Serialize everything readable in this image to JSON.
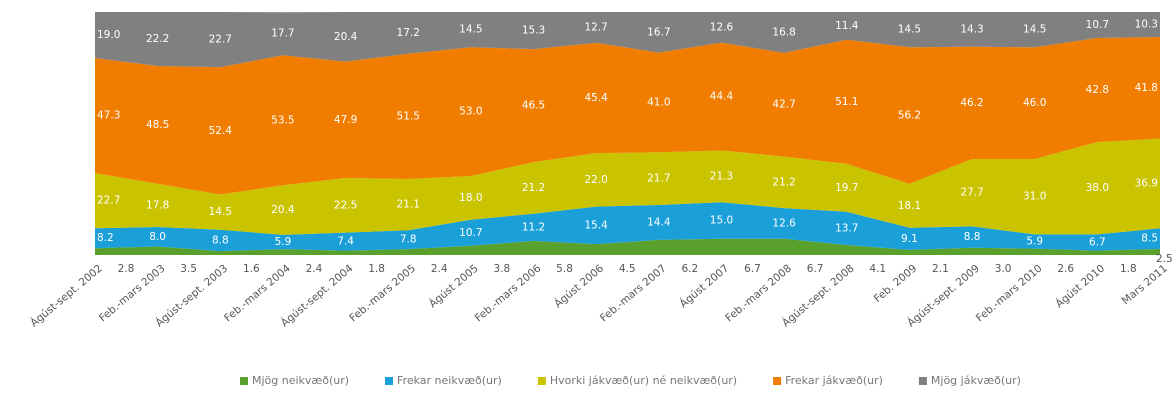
{
  "chart_data": {
    "type": "stacked_area",
    "categories": [
      "Ágúst-sept. 2002",
      "Feb.-mars 2003",
      "Ágúst-sept. 2003",
      "Feb.-mars 2004",
      "Ágúst-sept. 2004",
      "Feb.-mars 2005",
      "Ágúst 2005",
      "Feb.-mars 2006",
      "Ágúst 2006",
      "Feb.-mars 2007",
      "Ágúst 2007",
      "Feb.-mars 2008",
      "Ágúst-sept. 2008",
      "Feb. 2009",
      "Ágúst-sept. 2009",
      "Feb.-mars 2010",
      "Ágúst 2010",
      "Mars 2011"
    ],
    "ylim": [
      0,
      100
    ],
    "legend": "bottom",
    "series": [
      {
        "name": "Mjög neikvæð(ur)",
        "color": "#5aa02c",
        "values": [
          2.8,
          3.5,
          1.6,
          2.4,
          1.8,
          2.4,
          3.8,
          5.8,
          4.5,
          6.2,
          6.7,
          6.7,
          4.1,
          2.1,
          3.0,
          2.6,
          1.8,
          2.5
        ],
        "value_labels": [
          "2.8",
          "3.5",
          "1.6",
          "2.4",
          "1.8",
          "2.4",
          "3.8",
          "5.8",
          "4.5",
          "6.2",
          "6.7",
          "6.7",
          "4.1",
          "2.1",
          "3.0",
          "2.6",
          "1.8",
          "2.5"
        ]
      },
      {
        "name": "Frekar neikvæð(ur)",
        "color": "#1a9fd8",
        "values": [
          8.2,
          8.0,
          8.8,
          5.9,
          7.4,
          7.8,
          10.7,
          11.2,
          15.4,
          14.4,
          15.0,
          12.6,
          13.7,
          9.1,
          8.8,
          5.9,
          6.7,
          8.5
        ],
        "value_labels": [
          "8.2",
          "8.0",
          "8.8",
          "5.9",
          "7.4",
          "7.8",
          "10.7",
          "11.2",
          "15.4",
          "14.4",
          "15.0",
          "12.6",
          "13.7",
          "9.1",
          "8.8",
          "5.9",
          "6.7",
          "8.5"
        ]
      },
      {
        "name": "Hvorki jákvæð(ur) né neikvæð(ur)",
        "color": "#c9c300",
        "values": [
          22.7,
          17.8,
          14.5,
          20.4,
          22.5,
          21.1,
          18.0,
          21.2,
          22.0,
          21.7,
          21.3,
          21.2,
          19.7,
          18.1,
          27.7,
          31.0,
          38.0,
          36.9
        ],
        "value_labels": [
          "22.7",
          "17.8",
          "14.5",
          "20.4",
          "22.5",
          "21.1",
          "18.0",
          "21.2",
          "22.0",
          "21.7",
          "21.3",
          "21.2",
          "19.7",
          "18.1",
          "27.7",
          "31.0",
          "38.0",
          "36.9"
        ]
      },
      {
        "name": "Frekar jákvæð(ur)",
        "color": "#f07d00",
        "values": [
          47.3,
          48.5,
          52.4,
          53.5,
          47.9,
          51.5,
          53.0,
          46.5,
          45.4,
          41.0,
          44.4,
          42.7,
          51.1,
          56.2,
          46.2,
          46.0,
          42.8,
          41.8
        ],
        "value_labels": [
          "47.3",
          "48.5",
          "52.4",
          "53.5",
          "47.9",
          "51.5",
          "53.0",
          "46.5",
          "45.4",
          "41.0",
          "44.4",
          "42.7",
          "51.1",
          "56.2",
          "46.2",
          "46.0",
          "42.8",
          "41.8"
        ]
      },
      {
        "name": "Mjög jákvæð(ur)",
        "color": "#808080",
        "values": [
          19.0,
          22.2,
          22.7,
          17.7,
          20.4,
          17.2,
          14.5,
          15.3,
          12.7,
          16.7,
          12.6,
          16.8,
          11.4,
          14.5,
          14.3,
          14.5,
          10.7,
          10.3
        ],
        "value_labels": [
          "19.0",
          "22.2",
          "22.7",
          "17.7",
          "20.4",
          "17.2",
          "14.5",
          "15.3",
          "12.7",
          "16.7",
          "12.6",
          "16.8",
          "11.4",
          "14.5",
          "14.3",
          "14.5",
          "10.7",
          "10.3"
        ]
      }
    ]
  }
}
